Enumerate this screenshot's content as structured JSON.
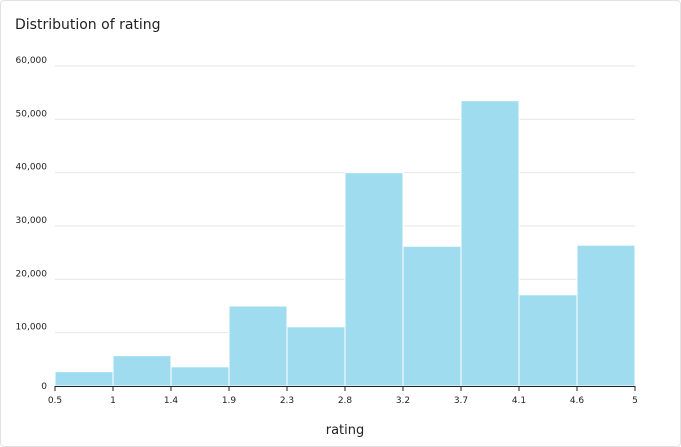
{
  "chart_data": {
    "type": "bar",
    "title": "Distribution of rating",
    "xlabel": "rating",
    "ylabel": "",
    "x_tick_labels": [
      "0.5",
      "1",
      "1.4",
      "1.9",
      "2.3",
      "2.8",
      "3.2",
      "3.7",
      "4.1",
      "4.6",
      "5"
    ],
    "y_tick_labels": [
      "0",
      "10,000",
      "20,000",
      "30,000",
      "40,000",
      "50,000",
      "60,000"
    ],
    "ylim": [
      0,
      60000
    ],
    "bins": [
      {
        "from": "0.5",
        "to": "1",
        "value": 2700
      },
      {
        "from": "1",
        "to": "1.4",
        "value": 5700
      },
      {
        "from": "1.4",
        "to": "1.9",
        "value": 3600
      },
      {
        "from": "1.9",
        "to": "2.3",
        "value": 15000
      },
      {
        "from": "2.3",
        "to": "2.8",
        "value": 11100
      },
      {
        "from": "2.8",
        "to": "3.2",
        "value": 40000
      },
      {
        "from": "3.2",
        "to": "3.7",
        "value": 26200
      },
      {
        "from": "3.7",
        "to": "4.1",
        "value": 53500
      },
      {
        "from": "4.1",
        "to": "4.6",
        "value": 17100
      },
      {
        "from": "4.6",
        "to": "5",
        "value": 26400
      }
    ],
    "bar_color": "#a0dcef",
    "grid": true,
    "legend": "none"
  }
}
